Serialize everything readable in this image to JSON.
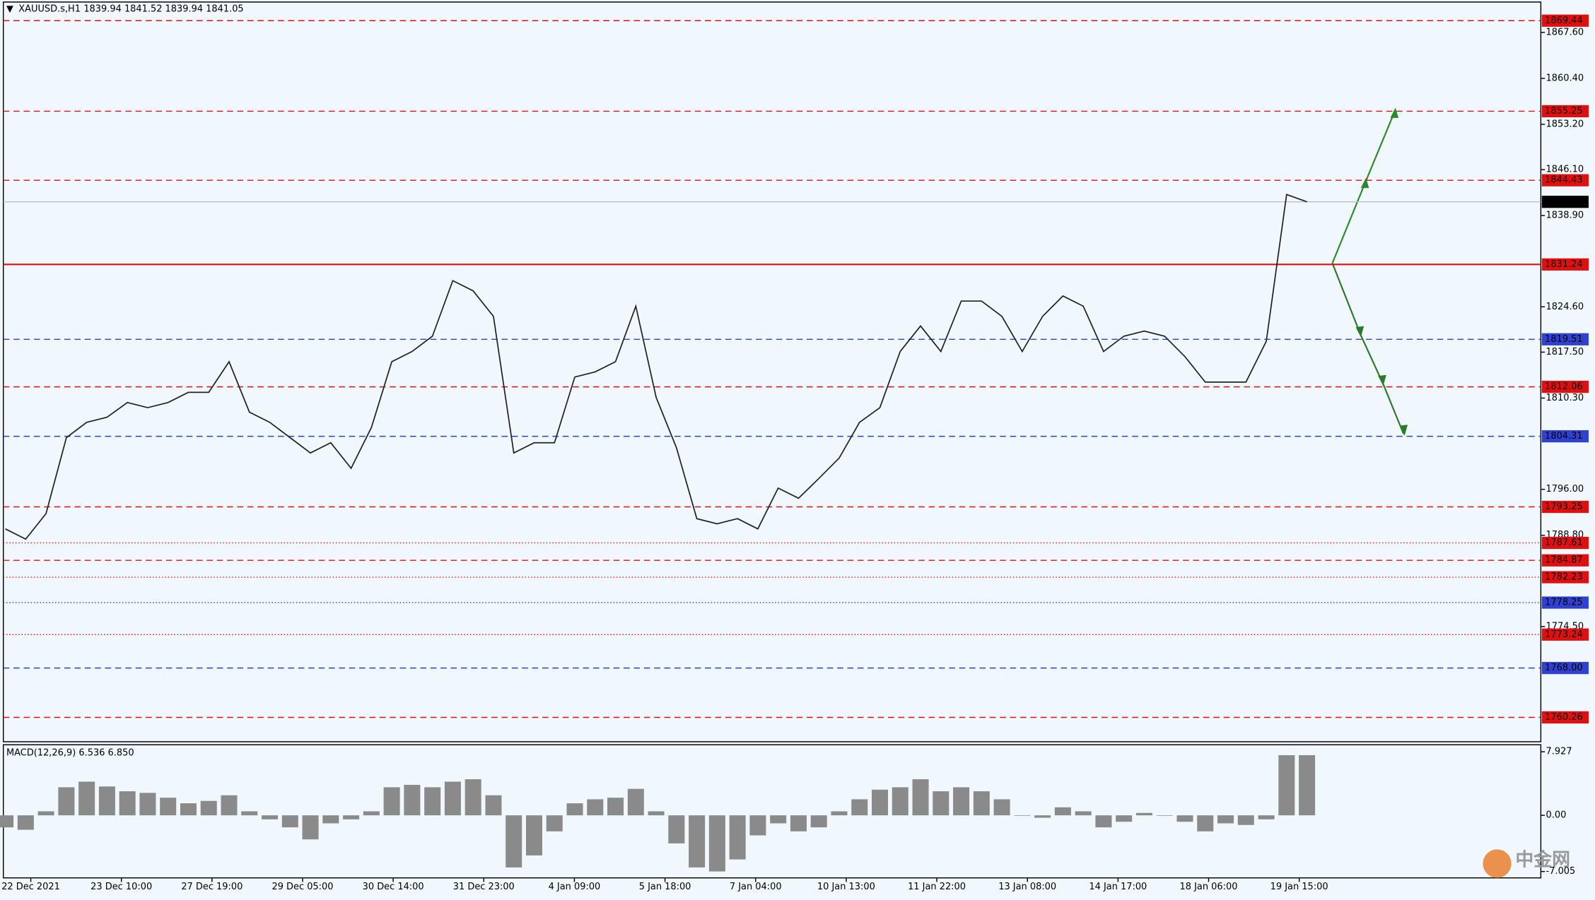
{
  "header": {
    "symbol": "XAUUSD.s,H1",
    "ohlc": "1839.94 1841.52 1839.94 1841.05"
  },
  "watermark": "中金网",
  "chart_data": [
    {
      "type": "line",
      "color": "#222222",
      "values": [
        1789.8,
        1788.2,
        1792.2,
        1804.1,
        1806.5,
        1807.3,
        1809.6,
        1808.8,
        1809.6,
        1811.2,
        1811.2,
        1816.0,
        1808.1,
        1806.5,
        1804.1,
        1801.7,
        1803.3,
        1799.3,
        1805.7,
        1816.0,
        1817.6,
        1820.0,
        1828.7,
        1827.1,
        1823.1,
        1801.7,
        1803.3,
        1803.3,
        1813.6,
        1814.4,
        1816.0,
        1824.7,
        1810.4,
        1802.5,
        1791.4,
        1790.6,
        1791.4,
        1789.8,
        1796.2,
        1794.6,
        1797.7,
        1800.9,
        1806.5,
        1808.8,
        1817.6,
        1821.6,
        1817.6,
        1825.5,
        1825.5,
        1823.1,
        1817.6,
        1823.1,
        1826.3,
        1824.7,
        1817.6,
        1820.0,
        1820.8,
        1820.0,
        1816.8,
        1812.8,
        1812.8,
        1812.8,
        1819.2,
        1842.2,
        1841.05
      ],
      "ylim": [
        1756.45,
        1872.36
      ],
      "yticks": [
        {
          "value": 1867.6,
          "label": "1867.60"
        },
        {
          "value": 1860.4,
          "label": "1860.40"
        },
        {
          "value": 1853.2,
          "label": "1853.20"
        },
        {
          "value": 1846.1,
          "label": "1846.10"
        },
        {
          "value": 1838.9,
          "label": "1838.90"
        },
        {
          "value": 1824.6,
          "label": "1824.60"
        },
        {
          "value": 1817.5,
          "label": "1817.50"
        },
        {
          "value": 1810.3,
          "label": "1810.30"
        },
        {
          "value": 1796.0,
          "label": "1796.00"
        },
        {
          "value": 1788.8,
          "label": "1788.80"
        },
        {
          "value": 1774.5,
          "label": "1774.50"
        }
      ],
      "levels": [
        {
          "value": 1869.44,
          "color": "#e01010",
          "dash": "6,4"
        },
        {
          "value": 1855.25,
          "color": "#e01010",
          "dash": "6,4"
        },
        {
          "value": 1844.43,
          "color": "#e01010",
          "dash": "6,4"
        },
        {
          "value": 1841.05,
          "color": "#000000",
          "dash": "1,0"
        },
        {
          "value": 1831.24,
          "color": "#e01010",
          "dash": "1,0"
        },
        {
          "value": 1819.51,
          "color": "#3040d0",
          "dash": "6,4"
        },
        {
          "value": 1812.06,
          "color": "#e01010",
          "dash": "6,4"
        },
        {
          "value": 1804.31,
          "color": "#3040d0",
          "dash": "6,4"
        },
        {
          "value": 1793.25,
          "color": "#e01010",
          "dash": "6,4"
        },
        {
          "value": 1787.61,
          "color": "#e01010",
          "dash": "1,2"
        },
        {
          "value": 1784.87,
          "color": "#e01010",
          "dash": "6,4"
        },
        {
          "value": 1782.23,
          "color": "#e01010",
          "dash": "1,2"
        },
        {
          "value": 1778.25,
          "color": "#3040d0",
          "dash": "1,2"
        },
        {
          "value": 1773.24,
          "color": "#e01010",
          "dash": "1,2"
        },
        {
          "value": 1768.0,
          "label": "1768.00",
          "color": "#3040d0",
          "dash": "6,4"
        },
        {
          "value": 1760.26,
          "color": "#e01010",
          "dash": "6,4"
        }
      ],
      "x_labels": [
        "22 Dec 2021",
        "23 Dec 10:00",
        "27 Dec 19:00",
        "29 Dec 05:00",
        "30 Dec 14:00",
        "31 Dec 23:00",
        "4 Jan 09:00",
        "5 Jan 18:00",
        "7 Jan 04:00",
        "10 Jan 13:00",
        "11 Jan 22:00",
        "13 Jan 08:00",
        "14 Jan 17:00",
        "18 Jan 06:00",
        "19 Jan 15:00"
      ]
    },
    {
      "type": "bar",
      "title": "MACD(12,26,9) 6.536 6.850",
      "color": "#8a8a8a",
      "values": [
        -1.5,
        -1.8,
        0.5,
        3.5,
        4.2,
        3.6,
        3.0,
        2.8,
        2.2,
        1.5,
        1.8,
        2.5,
        0.5,
        -0.5,
        -1.5,
        -3.0,
        -1.0,
        -0.5,
        0.5,
        3.5,
        3.8,
        3.5,
        4.2,
        4.5,
        2.5,
        -6.5,
        -5.0,
        -2.0,
        1.5,
        2.0,
        2.2,
        3.3,
        0.5,
        -3.5,
        -6.5,
        -7.0,
        -5.5,
        -2.5,
        -1.0,
        -2.0,
        -1.5,
        0.5,
        2.0,
        3.2,
        3.5,
        4.5,
        3.0,
        3.5,
        3.0,
        2.0,
        0.0,
        -0.3,
        1.0,
        0.5,
        -1.5,
        -0.8,
        0.3,
        0.0,
        -0.8,
        -2.0,
        -1.0,
        -1.2,
        -0.5,
        7.5,
        7.5
      ],
      "ylim": [
        -7.8,
        8.8
      ],
      "yticks": [
        7.927,
        {
          "value": 0,
          "label": "0.00"
        },
        -7.005
      ]
    }
  ]
}
